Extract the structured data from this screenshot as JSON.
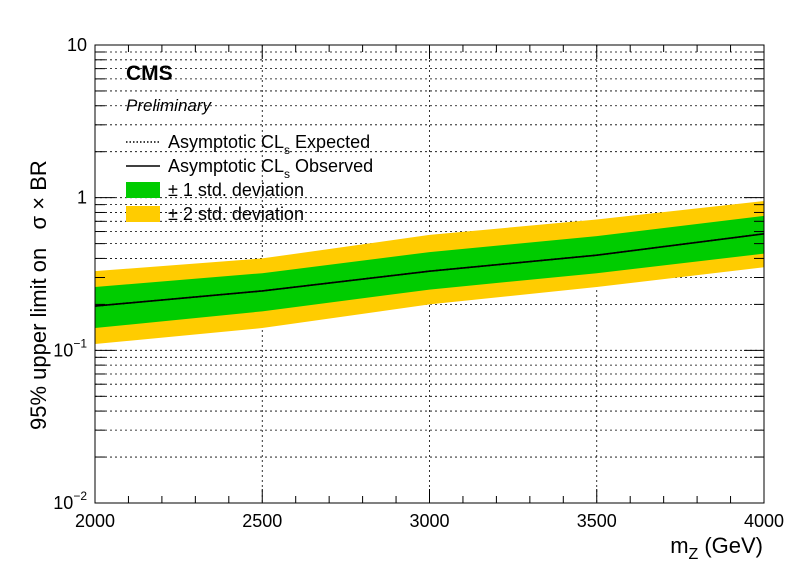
{
  "chart_data": {
    "type": "line",
    "experiment_label": "CMS",
    "status_label": "Preliminary",
    "xlabel_main": "m",
    "xlabel_sub": "Z",
    "xlabel_unit": "(GeV)",
    "ylabel": "95% upper limit on   σ × BR",
    "x_scale": "linear",
    "y_scale": "log",
    "xlim": [
      2000,
      4000
    ],
    "ylim": [
      0.01,
      10
    ],
    "grid": true,
    "x_ticks": [
      {
        "value": 2000,
        "label": "2000"
      },
      {
        "value": 2500,
        "label": "2500"
      },
      {
        "value": 3000,
        "label": "3000"
      },
      {
        "value": 3500,
        "label": "3500"
      },
      {
        "value": 4000,
        "label": "4000"
      }
    ],
    "y_ticks": [
      {
        "value": 10,
        "base": "10",
        "exp": ""
      },
      {
        "value": 1,
        "base": "1",
        "exp": ""
      },
      {
        "value": 0.1,
        "base": "10",
        "exp": "−1"
      },
      {
        "value": 0.01,
        "base": "10",
        "exp": "−2"
      }
    ],
    "legend_position": "top-left",
    "legend": [
      {
        "key": "expected",
        "text_a": "Asymptotic CL",
        "text_sub": "s",
        "text_b": " Expected"
      },
      {
        "key": "observed",
        "text_a": "Asymptotic CL",
        "text_sub": "s",
        "text_b": " Observed"
      },
      {
        "key": "band1",
        "text_a": "± 1 std. deviation",
        "text_sub": "",
        "text_b": ""
      },
      {
        "key": "band2",
        "text_a": "± 2 std. deviation",
        "text_sub": "",
        "text_b": ""
      }
    ],
    "colors": {
      "band1": "#00cc00",
      "band2": "#ffcc00",
      "line": "#000000",
      "grid": "#000000"
    },
    "x": [
      2000,
      2500,
      3000,
      3500,
      4000
    ],
    "series": [
      {
        "name": "Asymptotic CLs Expected",
        "style": "dotted",
        "values": [
          0.195,
          0.245,
          0.33,
          0.42,
          0.58
        ]
      },
      {
        "name": "Asymptotic CLs Observed",
        "style": "solid",
        "values": [
          0.195,
          0.245,
          0.33,
          0.42,
          0.58
        ]
      }
    ],
    "bands": [
      {
        "name": "± 2 std. deviation",
        "lower": [
          0.11,
          0.14,
          0.2,
          0.26,
          0.35
        ],
        "upper": [
          0.33,
          0.4,
          0.57,
          0.72,
          0.95
        ]
      },
      {
        "name": "± 1 std. deviation",
        "lower": [
          0.14,
          0.18,
          0.25,
          0.32,
          0.43
        ],
        "upper": [
          0.26,
          0.32,
          0.44,
          0.56,
          0.76
        ]
      }
    ]
  }
}
